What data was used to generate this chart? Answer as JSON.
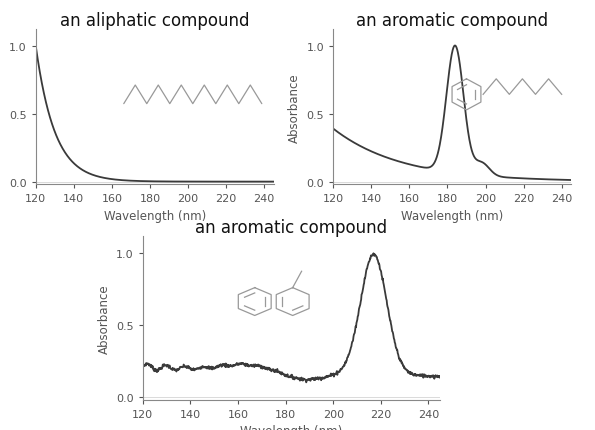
{
  "title1": "an aliphatic compound",
  "title2": "an aromatic compound",
  "title3": "an aromatic compound",
  "xlabel": "Wavelength (nm)",
  "ylabel": "Absorbance",
  "xlim": [
    120,
    245
  ],
  "ylim": [
    -0.02,
    1.12
  ],
  "yticks": [
    0.0,
    0.5,
    1.0
  ],
  "xticks": [
    120,
    140,
    160,
    180,
    200,
    220,
    240
  ],
  "line_color": "#3a3a3a",
  "line_width": 1.3,
  "bg_color": "#ffffff",
  "title_fontsize": 12,
  "label_fontsize": 8.5,
  "tick_fontsize": 8,
  "struct_color": "#999999"
}
